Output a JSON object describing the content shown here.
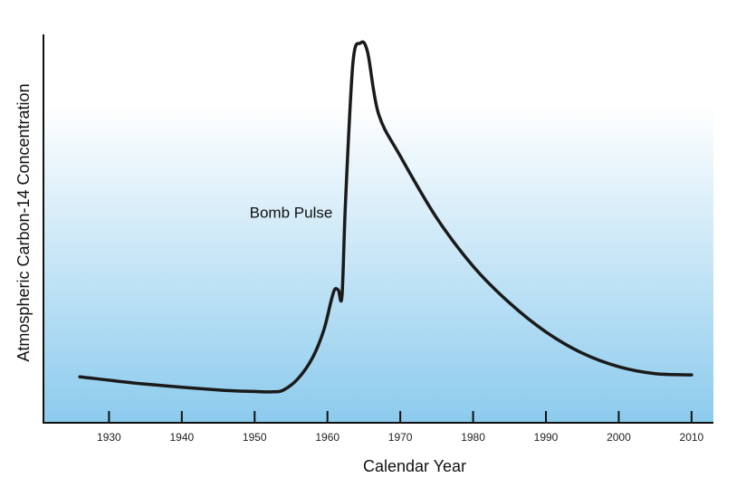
{
  "chart_data": {
    "type": "line",
    "title": "",
    "xlabel": "Calendar Year",
    "ylabel": "Atmospheric Carbon-14 Concentration",
    "xlim": [
      1921,
      2013
    ],
    "x_ticks": [
      1930,
      1940,
      1950,
      1960,
      1970,
      1980,
      1990,
      2000,
      2010
    ],
    "y_ticks": [],
    "grid": false,
    "background": "vertical gradient, white at top to light blue at bottom",
    "annotations": [
      {
        "text": "Bomb Pulse",
        "x": 1955,
        "y": 0.53
      }
    ],
    "series": [
      {
        "line_color": "#1a1a1a",
        "y_units": "relative (0 = axis baseline, 1 = top of axis)",
        "x": [
          1926,
          1935,
          1945,
          1950,
          1952.5,
          1954,
          1956,
          1958,
          1959.5,
          1960.5,
          1961,
          1961.5,
          1962,
          1962.5,
          1963.5,
          1964.5,
          1965.5,
          1967,
          1970,
          1975,
          1980,
          1985,
          1990,
          1995,
          2000,
          2005,
          2010
        ],
        "y": [
          0.119,
          0.1,
          0.085,
          0.081,
          0.08,
          0.085,
          0.115,
          0.17,
          0.24,
          0.315,
          0.345,
          0.343,
          0.33,
          0.58,
          0.93,
          0.982,
          0.96,
          0.8,
          0.69,
          0.53,
          0.405,
          0.31,
          0.235,
          0.18,
          0.145,
          0.127,
          0.124
        ]
      }
    ]
  }
}
